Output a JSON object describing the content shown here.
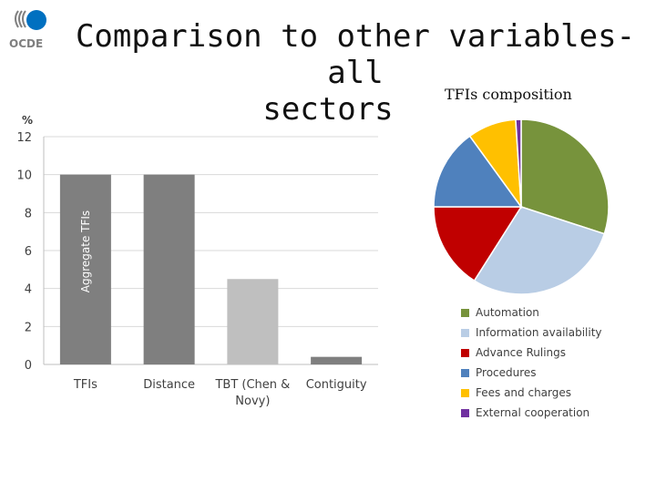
{
  "slide": {
    "title_line1": "Comparison to other variables- all",
    "title_line2": "sectors",
    "logo_text": "OCDE"
  },
  "chart_data": [
    {
      "type": "bar",
      "ylabel": "%",
      "categories": [
        "TFIs",
        "Distance",
        "TBT (Chen & Novy)",
        "Contiguity"
      ],
      "category_lines": [
        [
          "TFIs"
        ],
        [
          "Distance"
        ],
        [
          "TBT (Chen &",
          "Novy)"
        ],
        [
          "Contiguity"
        ]
      ],
      "values": [
        10,
        10,
        4.5,
        0.4
      ],
      "colors": [
        "#7f7f7f",
        "#7f7f7f",
        "#bfbfbf",
        "#7f7f7f"
      ],
      "ylim": [
        0,
        12
      ],
      "yticks": [
        0,
        2,
        4,
        6,
        8,
        10,
        12
      ],
      "grid": true,
      "annotation": "Aggregate TFIs"
    },
    {
      "type": "pie",
      "title": "TFIs composition",
      "legend_position": "bottom",
      "slices": [
        {
          "label": "Automation",
          "value": 30,
          "color": "#77933c"
        },
        {
          "label": "Information availability",
          "value": 29,
          "color": "#b9cde5"
        },
        {
          "label": "Advance Rulings",
          "value": 16,
          "color": "#c00000"
        },
        {
          "label": "Procedures",
          "value": 15,
          "color": "#4f81bd"
        },
        {
          "label": "Fees and charges",
          "value": 9,
          "color": "#ffc000"
        },
        {
          "label": "External cooperation",
          "value": 1,
          "color": "#7030a0"
        }
      ]
    }
  ]
}
